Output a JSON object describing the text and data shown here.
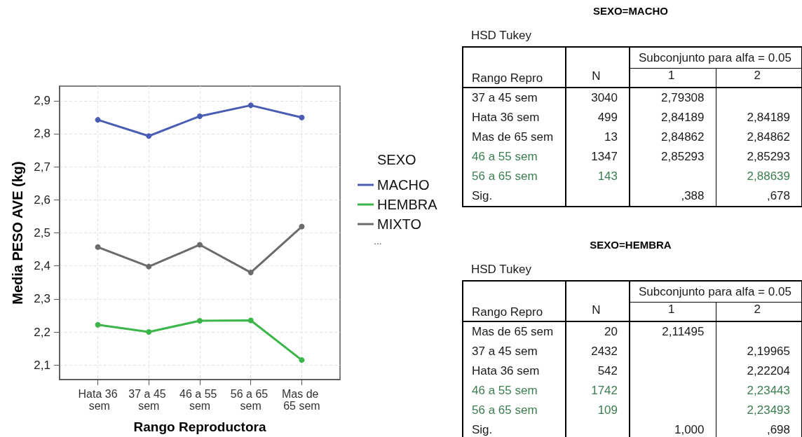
{
  "chart_data": [
    {
      "type": "line",
      "xlabel": "Rango Reproductora",
      "ylabel": "Media PESO AVE (kg)",
      "legend_title": "SEXO",
      "annotations": [
        "..."
      ],
      "categories": [
        "Hata 36 sem",
        "37 a 45 sem",
        "46 a 55 sem",
        "56 a 65 sem",
        "Mas de 65 sem"
      ],
      "series": [
        {
          "name": "MACHO",
          "color": "#4a5db5",
          "values": [
            2.842,
            2.793,
            2.853,
            2.886,
            2.849
          ]
        },
        {
          "name": "HEMBRA",
          "color": "#3cb54a",
          "values": [
            2.222,
            2.2,
            2.234,
            2.235,
            2.115
          ]
        },
        {
          "name": "MIXTO",
          "color": "#6b6b6b",
          "values": [
            2.457,
            2.398,
            2.464,
            2.38,
            2.519
          ]
        }
      ],
      "ylim": [
        2.056,
        2.944
      ],
      "yticks": [
        {
          "value": 2.1,
          "label": "2,1"
        },
        {
          "value": 2.2,
          "label": "2,2"
        },
        {
          "value": 2.3,
          "label": "2,3"
        },
        {
          "value": 2.4,
          "label": "2,4"
        },
        {
          "value": 2.5,
          "label": "2,5"
        },
        {
          "value": 2.6,
          "label": "2,6"
        },
        {
          "value": 2.7,
          "label": "2,7"
        },
        {
          "value": 2.8,
          "label": "2,8"
        },
        {
          "value": 2.9,
          "label": "2,9"
        }
      ],
      "grid": true,
      "legend": "right",
      "marker": "circle",
      "line_style": "solid"
    },
    {
      "type": "other",
      "title": "SEXO=MACHO",
      "subtitle": "HSD Tukey",
      "xlabel": "Subconjunto para alfa = 0.05",
      "categories": [
        "Rango Repro",
        "N",
        "1",
        "2"
      ],
      "cell_labels": [
        [
          "37 a 45 sem",
          "3040",
          "2,79308",
          null
        ],
        [
          "Hata 36 sem",
          "499",
          "2,84189",
          "2,84189"
        ],
        [
          "Mas de 65 sem",
          "13",
          "2,84862",
          "2,84862"
        ],
        [
          "46 a 55 sem",
          "1347",
          "2,85293",
          "2,85293"
        ],
        [
          "56 a 65 sem",
          "143",
          null,
          "2,88639"
        ],
        [
          "Sig.",
          null,
          ",388",
          ",678"
        ]
      ],
      "colors": [
        [
          null,
          null,
          null,
          null
        ],
        [
          null,
          null,
          null,
          null
        ],
        [
          null,
          null,
          null,
          null
        ],
        [
          "#3b7d4f",
          null,
          null,
          null
        ],
        [
          "#3b7d4f",
          "#3b7d4f",
          null,
          "#3b7d4f"
        ],
        [
          null,
          null,
          null,
          null
        ]
      ]
    },
    {
      "type": "other",
      "title": "SEXO=HEMBRA",
      "subtitle": "HSD Tukey",
      "xlabel": "Subconjunto para alfa = 0.05",
      "categories": [
        "Rango Repro",
        "N",
        "1",
        "2"
      ],
      "cell_labels": [
        [
          "Mas de 65 sem",
          "20",
          "2,11495",
          null
        ],
        [
          "37 a 45 sem",
          "2432",
          null,
          "2,19965"
        ],
        [
          "Hata 36 sem",
          "542",
          null,
          "2,22204"
        ],
        [
          "46 a 55 sem",
          "1742",
          null,
          "2,23443"
        ],
        [
          "56 a 65 sem",
          "109",
          null,
          "2,23493"
        ],
        [
          "Sig.",
          null,
          "1,000",
          ",698"
        ]
      ],
      "colors": [
        [
          null,
          null,
          null,
          null
        ],
        [
          null,
          null,
          null,
          null
        ],
        [
          null,
          null,
          null,
          null
        ],
        [
          "#3b7d4f",
          "#3b7d4f",
          null,
          "#3b7d4f"
        ],
        [
          "#3b7d4f",
          "#3b7d4f",
          null,
          "#3b7d4f"
        ],
        [
          null,
          null,
          null,
          null
        ]
      ]
    }
  ]
}
